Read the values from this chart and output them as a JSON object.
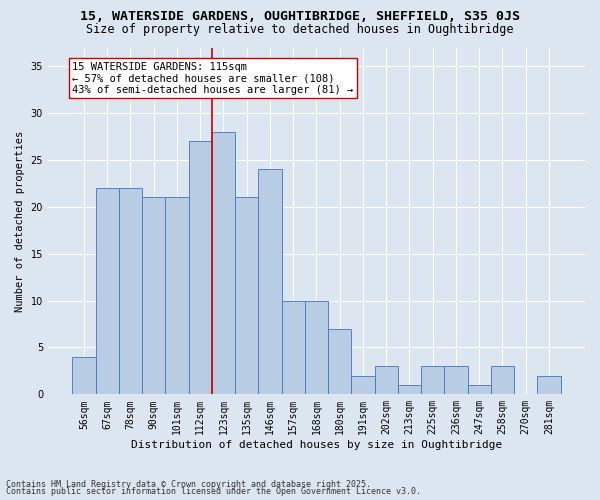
{
  "title1": "15, WATERSIDE GARDENS, OUGHTIBRIDGE, SHEFFIELD, S35 0JS",
  "title2": "Size of property relative to detached houses in Oughtibridge",
  "xlabel": "Distribution of detached houses by size in Oughtibridge",
  "ylabel": "Number of detached properties",
  "bar_labels": [
    "56sqm",
    "67sqm",
    "78sqm",
    "90sqm",
    "101sqm",
    "112sqm",
    "123sqm",
    "135sqm",
    "146sqm",
    "157sqm",
    "168sqm",
    "180sqm",
    "191sqm",
    "202sqm",
    "213sqm",
    "225sqm",
    "236sqm",
    "247sqm",
    "258sqm",
    "270sqm",
    "281sqm"
  ],
  "bar_values": [
    4,
    22,
    22,
    21,
    21,
    27,
    28,
    21,
    24,
    10,
    10,
    7,
    2,
    3,
    1,
    3,
    3,
    1,
    3,
    0,
    2
  ],
  "bar_color": "#b8cce4",
  "bar_edge_color": "#4472c4",
  "vline_x": 5.5,
  "vline_color": "#cc0000",
  "annotation_text": "15 WATERSIDE GARDENS: 115sqm\n← 57% of detached houses are smaller (108)\n43% of semi-detached houses are larger (81) →",
  "annotation_box_color": "#ffffff",
  "annotation_box_edge": "#cc0000",
  "ylim": [
    0,
    37
  ],
  "yticks": [
    0,
    5,
    10,
    15,
    20,
    25,
    30,
    35
  ],
  "footer1": "Contains HM Land Registry data © Crown copyright and database right 2025.",
  "footer2": "Contains public sector information licensed under the Open Government Licence v3.0.",
  "plot_bg_color": "#dce6f1",
  "fig_bg_color": "#dce6f1",
  "title1_fontsize": 9.5,
  "title2_fontsize": 8.5,
  "annotation_fontsize": 7.5,
  "axis_fontsize": 7,
  "ylabel_fontsize": 7.5,
  "xlabel_fontsize": 8,
  "footer_fontsize": 6
}
